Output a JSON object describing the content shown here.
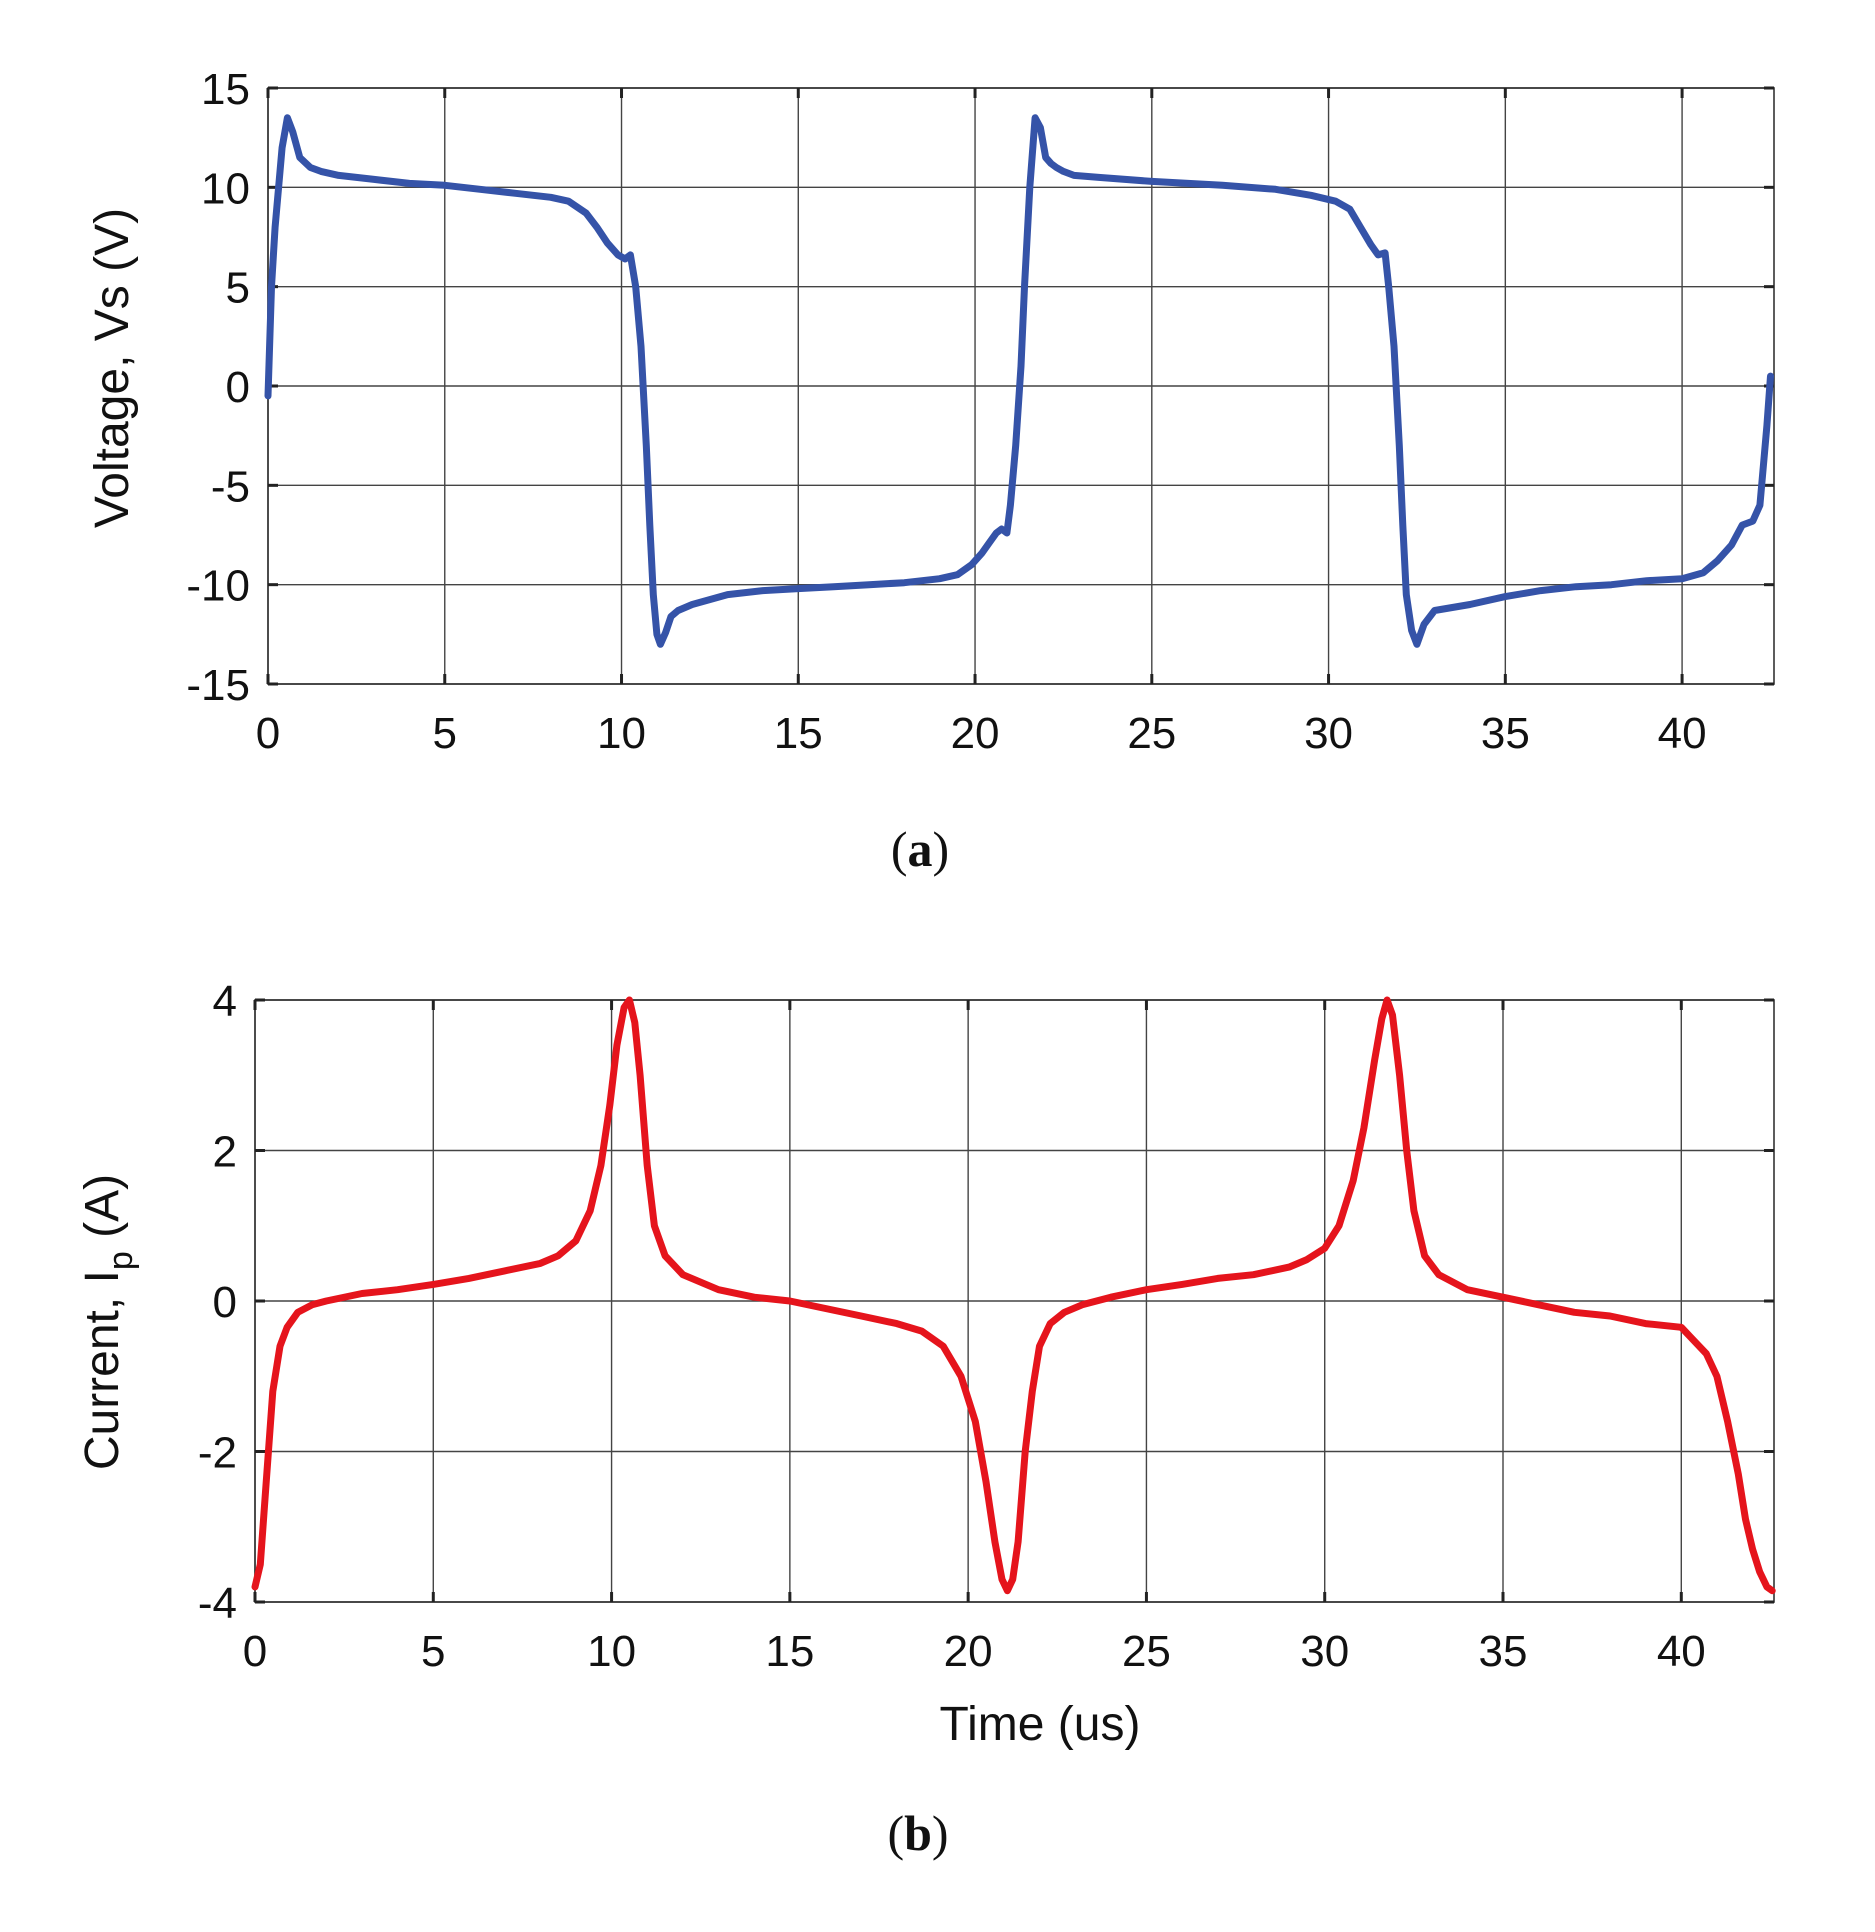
{
  "colors": {
    "voltage": "#3553a8",
    "current": "#e5141c"
  },
  "chart_data": [
    {
      "type": "line",
      "panel": "a",
      "panel_label": "a",
      "title": "",
      "xlabel": "",
      "ylabel": "Voltage, Vs (V)",
      "xlim": [
        0,
        42.6
      ],
      "ylim": [
        -15,
        15
      ],
      "xticks": [
        0,
        5,
        10,
        15,
        20,
        25,
        30,
        35,
        40
      ],
      "yticks": [
        15,
        10,
        5,
        0,
        -5,
        -10,
        -15
      ],
      "grid": true,
      "series": [
        {
          "name": "Vs",
          "x": [
            0,
            0.1,
            0.2,
            0.3,
            0.4,
            0.55,
            0.7,
            0.9,
            1.2,
            1.5,
            2,
            3,
            4,
            5,
            6,
            7,
            8,
            8.5,
            9,
            9.3,
            9.6,
            9.9,
            10.1,
            10.25,
            10.4,
            10.55,
            10.7,
            10.8,
            10.9,
            11.0,
            11.1,
            11.25,
            11.4,
            11.6,
            12,
            13,
            14,
            15,
            16,
            17,
            18,
            19,
            19.5,
            19.9,
            20.2,
            20.4,
            20.6,
            20.75,
            20.9,
            21.0,
            21.15,
            21.3,
            21.4,
            21.55,
            21.7,
            21.85,
            22.0,
            22.15,
            22.3,
            22.5,
            22.8,
            23.5,
            25,
            27,
            28.5,
            29.5,
            30.2,
            30.6,
            30.9,
            31.2,
            31.4,
            31.6,
            31.7,
            31.85,
            32.0,
            32.1,
            32.2,
            32.35,
            32.5,
            32.7,
            33,
            34,
            35,
            36,
            37,
            38,
            39,
            40,
            40.6,
            41.0,
            41.4,
            41.7,
            42.0,
            42.2,
            42.3,
            42.4,
            42.5
          ],
          "values": [
            -0.5,
            5,
            8,
            10,
            12,
            13.5,
            12.8,
            11.5,
            11,
            10.8,
            10.6,
            10.4,
            10.2,
            10.1,
            9.9,
            9.7,
            9.5,
            9.3,
            8.7,
            8.0,
            7.2,
            6.6,
            6.4,
            6.6,
            5.0,
            2.0,
            -3.0,
            -7.0,
            -10.5,
            -12.5,
            -13.0,
            -12.4,
            -11.6,
            -11.3,
            -11,
            -10.5,
            -10.3,
            -10.2,
            -10.1,
            -10.0,
            -9.9,
            -9.7,
            -9.5,
            -9.0,
            -8.4,
            -7.9,
            -7.4,
            -7.2,
            -7.4,
            -6.0,
            -3.0,
            1.0,
            5.0,
            10.0,
            13.5,
            13.0,
            11.5,
            11.2,
            11.0,
            10.8,
            10.6,
            10.5,
            10.3,
            10.1,
            9.9,
            9.6,
            9.3,
            8.9,
            8.0,
            7.1,
            6.6,
            6.7,
            5.0,
            2.0,
            -3.0,
            -7.0,
            -10.5,
            -12.3,
            -13.0,
            -12.0,
            -11.3,
            -11.0,
            -10.6,
            -10.3,
            -10.1,
            -10.0,
            -9.8,
            -9.7,
            -9.4,
            -8.8,
            -8.0,
            -7.0,
            -6.8,
            -6.0,
            -4.0,
            -2.0,
            0.5
          ]
        }
      ]
    },
    {
      "type": "line",
      "panel": "b",
      "panel_label": "b",
      "title": "",
      "xlabel": "Time (us)",
      "ylabel_main": "Current, I",
      "ylabel_sub": "p",
      "ylabel_end": " (A)",
      "xlim": [
        0,
        42.6
      ],
      "ylim": [
        -4,
        4
      ],
      "xticks": [
        0,
        5,
        10,
        15,
        20,
        25,
        30,
        35,
        40
      ],
      "yticks": [
        4,
        2,
        0,
        -2,
        -4
      ],
      "grid": true,
      "series": [
        {
          "name": "Ip",
          "x": [
            0,
            0.15,
            0.3,
            0.5,
            0.7,
            0.9,
            1.2,
            1.6,
            2,
            3,
            4,
            5,
            6,
            7,
            8,
            8.5,
            9,
            9.4,
            9.7,
            9.95,
            10.15,
            10.35,
            10.5,
            10.65,
            10.8,
            11.0,
            11.2,
            11.5,
            12,
            13,
            14,
            15,
            16,
            17,
            18,
            18.7,
            19.3,
            19.8,
            20.2,
            20.5,
            20.75,
            20.95,
            21.1,
            21.25,
            21.4,
            21.6,
            21.8,
            22.0,
            22.3,
            22.7,
            23.2,
            24,
            25,
            26,
            27,
            28,
            29,
            29.5,
            30,
            30.4,
            30.8,
            31.1,
            31.4,
            31.6,
            31.75,
            31.9,
            32.1,
            32.3,
            32.5,
            32.8,
            33.2,
            34,
            35,
            36,
            37,
            38,
            39,
            40,
            40.3,
            40.7,
            41.0,
            41.3,
            41.6,
            41.8,
            42.0,
            42.2,
            42.4,
            42.55
          ],
          "values": [
            -3.8,
            -3.5,
            -2.5,
            -1.2,
            -0.6,
            -0.35,
            -0.15,
            -0.05,
            0,
            0.1,
            0.15,
            0.22,
            0.3,
            0.4,
            0.5,
            0.6,
            0.8,
            1.2,
            1.8,
            2.6,
            3.4,
            3.9,
            4.0,
            3.7,
            3.0,
            1.8,
            1.0,
            0.6,
            0.35,
            0.15,
            0.05,
            0,
            -0.1,
            -0.2,
            -0.3,
            -0.4,
            -0.6,
            -1.0,
            -1.6,
            -2.4,
            -3.2,
            -3.7,
            -3.85,
            -3.7,
            -3.2,
            -2.0,
            -1.2,
            -0.6,
            -0.3,
            -0.15,
            -0.05,
            0.05,
            0.15,
            0.22,
            0.3,
            0.35,
            0.45,
            0.55,
            0.7,
            1.0,
            1.6,
            2.3,
            3.2,
            3.75,
            4.0,
            3.8,
            3.0,
            2.0,
            1.2,
            0.6,
            0.35,
            0.15,
            0.05,
            -0.05,
            -0.15,
            -0.2,
            -0.3,
            -0.35,
            -0.5,
            -0.7,
            -1.0,
            -1.6,
            -2.3,
            -2.9,
            -3.3,
            -3.6,
            -3.8,
            -3.85
          ]
        }
      ]
    }
  ]
}
